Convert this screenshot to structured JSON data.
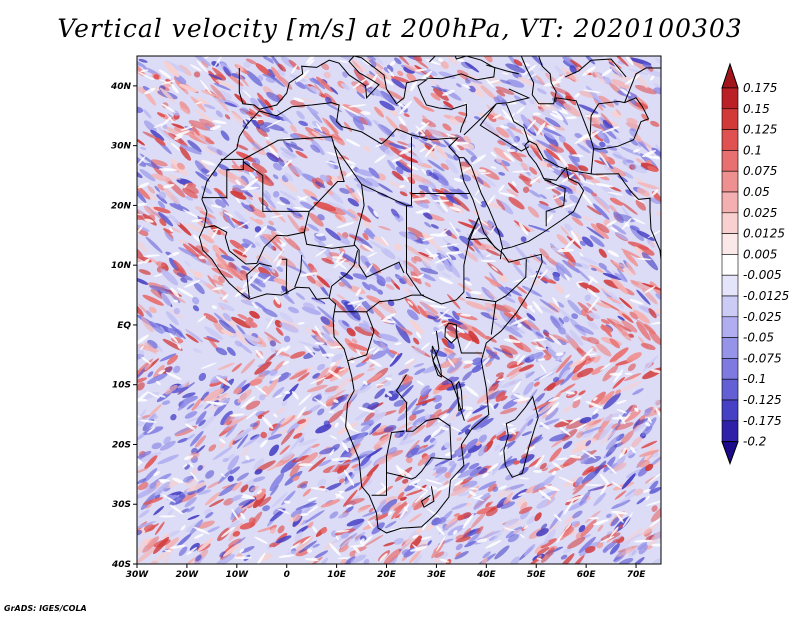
{
  "title": "Vertical velocity [m/s] at 200hPa, VT: 2020100303",
  "footer": "GrADS: IGES/COLA",
  "map": {
    "projection": "latlon",
    "lon_range": [
      -30,
      75
    ],
    "lat_range": [
      -40,
      45
    ],
    "grid_lines": false,
    "x_ticks": [
      {
        "value": -30,
        "label": "30W"
      },
      {
        "value": -20,
        "label": "20W"
      },
      {
        "value": -10,
        "label": "10W"
      },
      {
        "value": 0,
        "label": "0"
      },
      {
        "value": 10,
        "label": "10E"
      },
      {
        "value": 20,
        "label": "20E"
      },
      {
        "value": 30,
        "label": "30E"
      },
      {
        "value": 40,
        "label": "40E"
      },
      {
        "value": 50,
        "label": "50E"
      },
      {
        "value": 60,
        "label": "60E"
      },
      {
        "value": 70,
        "label": "70E"
      }
    ],
    "y_ticks": [
      {
        "value": 40,
        "label": "40N"
      },
      {
        "value": 30,
        "label": "30N"
      },
      {
        "value": 20,
        "label": "20N"
      },
      {
        "value": 10,
        "label": "10N"
      },
      {
        "value": 0,
        "label": "EQ"
      },
      {
        "value": -10,
        "label": "10S"
      },
      {
        "value": -20,
        "label": "20S"
      },
      {
        "value": -30,
        "label": "30S"
      },
      {
        "value": -40,
        "label": "40S"
      }
    ],
    "colorbar": {
      "placement": "right",
      "labels": [
        "0.175",
        "0.15",
        "0.125",
        "0.1",
        "0.075",
        "0.05",
        "0.025",
        "0.0125",
        "0.005",
        "-0.005",
        "-0.0125",
        "-0.025",
        "-0.05",
        "-0.075",
        "-0.1",
        "-0.125",
        "-0.175",
        "-0.2"
      ],
      "colors": [
        "#a0161c",
        "#bb2026",
        "#d23a3a",
        "#e05252",
        "#e87070",
        "#ef9090",
        "#f4b0b0",
        "#f8d0d0",
        "#fbe8e8",
        "#ffffff",
        "#e4e4fb",
        "#cccbf5",
        "#b0aef0",
        "#9694e8",
        "#7e7ae0",
        "#6260d4",
        "#4640c4",
        "#2e20a8",
        "#1c0a8c"
      ]
    }
  }
}
